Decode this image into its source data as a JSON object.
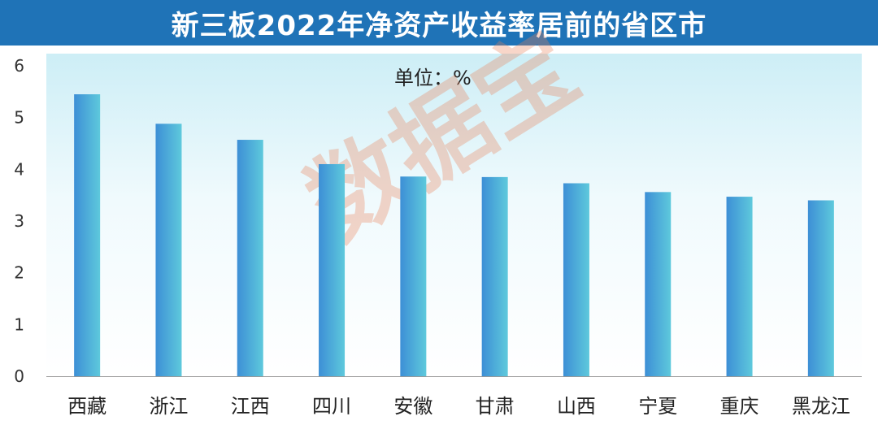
{
  "title": "新三板2022年净资产收益率居前的省区市",
  "unit_label": "单位：%",
  "watermark": "数据宝",
  "colors": {
    "title_bg": "#1f73b7",
    "bar_left": "#3d8fd6",
    "bar_right": "#5ec9dc",
    "watermark": "#e97e58"
  },
  "chart_data": {
    "type": "bar",
    "title": "新三板2022年净资产收益率居前的省区市",
    "xlabel": "",
    "ylabel": "",
    "unit": "%",
    "categories": [
      "西藏",
      "浙江",
      "江西",
      "四川",
      "安徽",
      "甘肃",
      "山西",
      "宁夏",
      "重庆",
      "黑龙江"
    ],
    "values": [
      5.45,
      4.88,
      4.57,
      4.1,
      3.86,
      3.85,
      3.73,
      3.56,
      3.47,
      3.4
    ],
    "ylim": [
      0,
      6
    ],
    "yticks": [
      0,
      1,
      2,
      3,
      4,
      5,
      6
    ],
    "grid": false,
    "legend": "none"
  }
}
